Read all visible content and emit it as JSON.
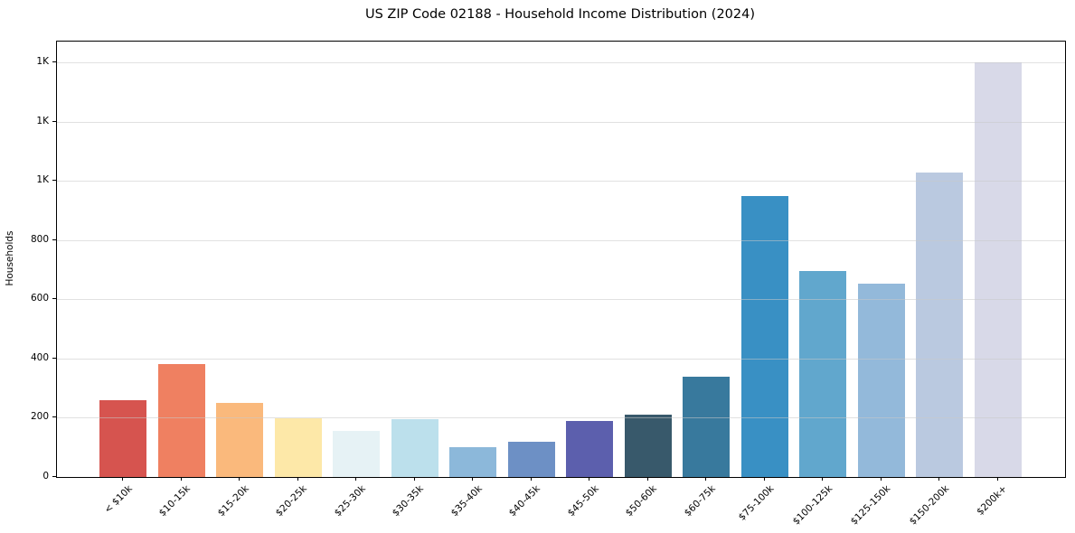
{
  "chart_data": {
    "type": "bar",
    "title": "US ZIP Code 02188 - Household Income Distribution (2024)",
    "xlabel": "",
    "ylabel": "Households",
    "categories": [
      "< $10k",
      "$10-15k",
      "$15-20k",
      "$20-25k",
      "$25-30k",
      "$30-35k",
      "$35-40k",
      "$40-45k",
      "$45-50k",
      "$50-60k",
      "$60-75k",
      "$75-100k",
      "$100-125k",
      "$125-150k",
      "$150-200k",
      "$200k+"
    ],
    "values": [
      260,
      380,
      250,
      198,
      157,
      196,
      101,
      120,
      190,
      210,
      340,
      948,
      695,
      652,
      1029,
      1400
    ],
    "bar_colors": [
      "#d6544f",
      "#ef8061",
      "#fab97c",
      "#fde8a8",
      "#e6f2f5",
      "#bce0ec",
      "#8cb8da",
      "#6d90c5",
      "#5c5fad",
      "#38596b",
      "#38799d",
      "#3990c4",
      "#61a7cd",
      "#93b9da",
      "#bac9e0",
      "#d8d9e8"
    ],
    "ylim": [
      0,
      1470
    ],
    "yticks": {
      "values": [
        0,
        200,
        400,
        600,
        800,
        1000,
        1200,
        1400
      ],
      "labels": [
        "0",
        "200",
        "400",
        "600",
        "800",
        "1K",
        "1K",
        "1K"
      ]
    },
    "grid": "horizontal",
    "legend": "none",
    "x_tick_rotation_deg": 45,
    "background_color": "#ffffff",
    "spine_color": "#000000"
  }
}
